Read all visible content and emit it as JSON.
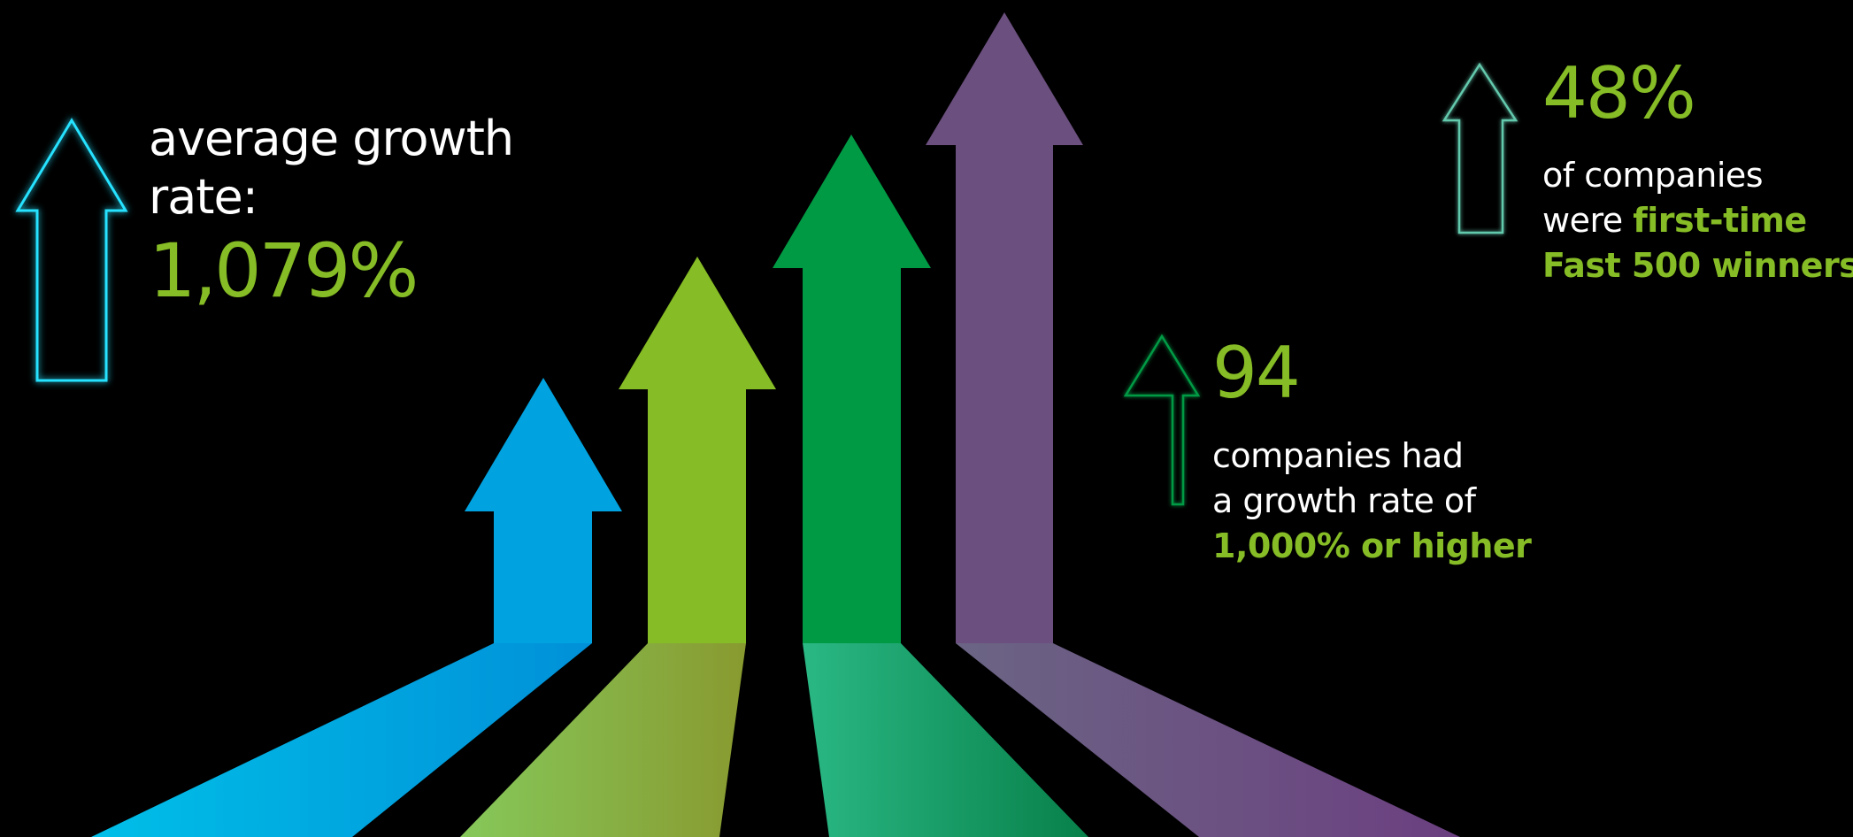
{
  "colors": {
    "background": "#000000",
    "accent_green": "#86bc25",
    "text_white": "#ffffff",
    "arrow_blue": "#00a3e0",
    "arrow_lime": "#86bc25",
    "arrow_green": "#009a44",
    "arrow_purple": "#6b4f7e",
    "outline_cyan": "#25e2ff",
    "outline_mint": "#63c9ad",
    "outline_green": "#009a44"
  },
  "icons": {
    "left": "outlined-up-arrow-icon",
    "middle": "outlined-up-arrow-icon",
    "right": "outlined-up-arrow-icon",
    "main_graphic": "rising-arrows-illustration"
  },
  "stats": {
    "average": {
      "label_line1": "average growth",
      "label_line2": "rate:",
      "value": "1,079%"
    },
    "companies_1000": {
      "value": "94",
      "line1": "companies had",
      "line2": "a growth rate of",
      "highlight": "1,000% or higher"
    },
    "first_time": {
      "value": "48%",
      "line1": "of companies",
      "line2_plain": "were ",
      "line2_highlight": "first-time",
      "line3_highlight": "Fast 500 winners"
    }
  }
}
